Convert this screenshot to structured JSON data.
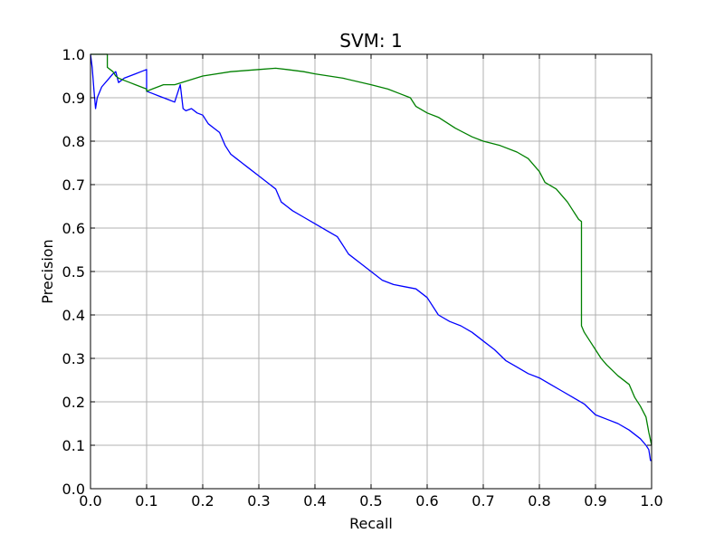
{
  "chart_data": {
    "type": "line",
    "title": "SVM: 1",
    "xlabel": "Recall",
    "ylabel": "Precision",
    "xlim": [
      0.0,
      1.0
    ],
    "ylim": [
      0.0,
      1.0
    ],
    "grid": true,
    "x_ticks": [
      "0.0",
      "0.1",
      "0.2",
      "0.3",
      "0.4",
      "0.5",
      "0.6",
      "0.7",
      "0.8",
      "0.9",
      "1.0"
    ],
    "y_ticks": [
      "0.0",
      "0.1",
      "0.2",
      "0.3",
      "0.4",
      "0.5",
      "0.6",
      "0.7",
      "0.8",
      "0.9",
      "1.0"
    ],
    "series": [
      {
        "color": "#0000ff",
        "x": [
          0.0,
          0.003,
          0.006,
          0.009,
          0.012,
          0.02,
          0.03,
          0.04,
          0.045,
          0.05,
          0.055,
          0.06,
          0.07,
          0.08,
          0.09,
          0.1,
          0.1,
          0.11,
          0.12,
          0.13,
          0.14,
          0.15,
          0.16,
          0.165,
          0.17,
          0.18,
          0.19,
          0.2,
          0.21,
          0.22,
          0.23,
          0.24,
          0.25,
          0.26,
          0.27,
          0.28,
          0.3,
          0.32,
          0.33,
          0.34,
          0.35,
          0.36,
          0.38,
          0.4,
          0.42,
          0.44,
          0.46,
          0.48,
          0.5,
          0.52,
          0.54,
          0.56,
          0.58,
          0.6,
          0.62,
          0.64,
          0.66,
          0.68,
          0.7,
          0.72,
          0.74,
          0.76,
          0.78,
          0.8,
          0.82,
          0.84,
          0.86,
          0.88,
          0.9,
          0.92,
          0.94,
          0.96,
          0.98,
          0.99,
          0.995,
          0.998,
          1.0
        ],
        "y": [
          1.0,
          0.97,
          0.92,
          0.875,
          0.9,
          0.925,
          0.94,
          0.955,
          0.96,
          0.935,
          0.94,
          0.945,
          0.95,
          0.955,
          0.96,
          0.965,
          0.915,
          0.91,
          0.905,
          0.9,
          0.895,
          0.89,
          0.93,
          0.875,
          0.87,
          0.875,
          0.865,
          0.86,
          0.84,
          0.83,
          0.82,
          0.79,
          0.77,
          0.76,
          0.75,
          0.74,
          0.72,
          0.7,
          0.69,
          0.66,
          0.65,
          0.64,
          0.625,
          0.61,
          0.595,
          0.58,
          0.54,
          0.52,
          0.5,
          0.48,
          0.47,
          0.465,
          0.46,
          0.44,
          0.4,
          0.385,
          0.375,
          0.36,
          0.34,
          0.32,
          0.295,
          0.28,
          0.265,
          0.255,
          0.24,
          0.225,
          0.21,
          0.195,
          0.17,
          0.16,
          0.15,
          0.135,
          0.115,
          0.1,
          0.09,
          0.065,
          0.065
        ]
      },
      {
        "color": "#008000",
        "x": [
          0.0,
          0.005,
          0.01,
          0.02,
          0.03,
          0.03,
          0.04,
          0.045,
          0.05,
          0.06,
          0.07,
          0.08,
          0.09,
          0.1,
          0.1,
          0.11,
          0.12,
          0.13,
          0.15,
          0.2,
          0.25,
          0.3,
          0.33,
          0.35,
          0.38,
          0.4,
          0.45,
          0.5,
          0.53,
          0.55,
          0.57,
          0.58,
          0.6,
          0.62,
          0.65,
          0.68,
          0.7,
          0.73,
          0.76,
          0.78,
          0.8,
          0.81,
          0.83,
          0.85,
          0.86,
          0.87,
          0.875,
          0.875,
          0.88,
          0.89,
          0.9,
          0.91,
          0.92,
          0.94,
          0.96,
          0.97,
          0.98,
          0.99,
          0.995,
          1.0
        ],
        "y": [
          1.0,
          1.0,
          1.0,
          1.0,
          1.0,
          0.97,
          0.96,
          0.95,
          0.945,
          0.94,
          0.935,
          0.93,
          0.925,
          0.92,
          0.915,
          0.92,
          0.925,
          0.93,
          0.93,
          0.95,
          0.96,
          0.965,
          0.968,
          0.965,
          0.96,
          0.955,
          0.945,
          0.93,
          0.92,
          0.91,
          0.9,
          0.88,
          0.865,
          0.855,
          0.83,
          0.81,
          0.8,
          0.79,
          0.775,
          0.76,
          0.73,
          0.705,
          0.69,
          0.66,
          0.64,
          0.62,
          0.615,
          0.375,
          0.36,
          0.34,
          0.32,
          0.3,
          0.285,
          0.26,
          0.24,
          0.21,
          0.19,
          0.165,
          0.13,
          0.1
        ]
      }
    ]
  }
}
